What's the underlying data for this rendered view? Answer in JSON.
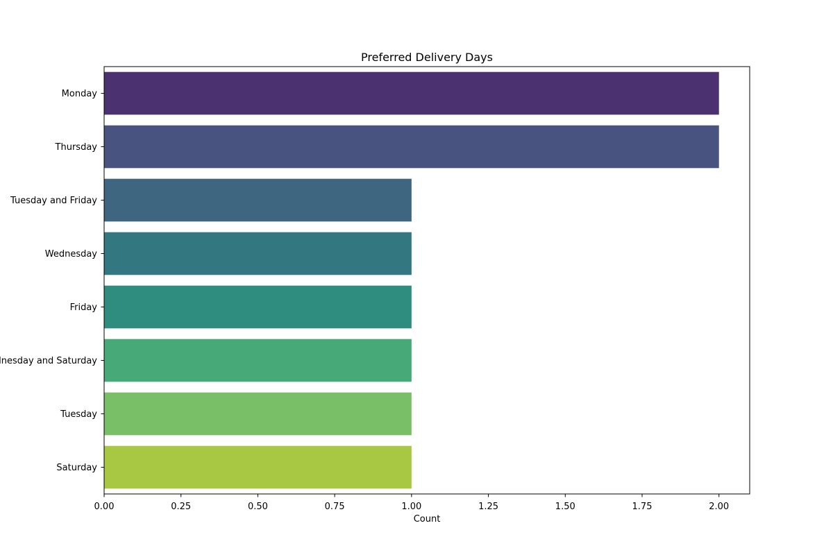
{
  "chart_data": {
    "type": "bar",
    "orientation": "horizontal",
    "title": "Preferred Delivery Days",
    "xlabel": "Count",
    "ylabel": "",
    "categories": [
      "Monday",
      "Thursday",
      "Tuesday and Friday",
      "Wednesday",
      "Friday",
      "Wednesday and Saturday",
      "Tuesday",
      "Saturday"
    ],
    "values": [
      2,
      2,
      1,
      1,
      1,
      1,
      1,
      1
    ],
    "colors": [
      "#4b3170",
      "#48547f",
      "#3e6680",
      "#337880",
      "#2e8d7e",
      "#47a978",
      "#78bf68",
      "#a8c743"
    ],
    "xlim": [
      0,
      2.1
    ],
    "xticks": [
      0,
      0.25,
      0.5,
      0.75,
      1,
      1.25,
      1.5,
      1.75,
      2
    ],
    "xtick_labels": [
      "0.00",
      "0.25",
      "0.50",
      "0.75",
      "1.00",
      "1.25",
      "1.50",
      "1.75",
      "2.00"
    ],
    "grid": false,
    "legend": "none"
  }
}
